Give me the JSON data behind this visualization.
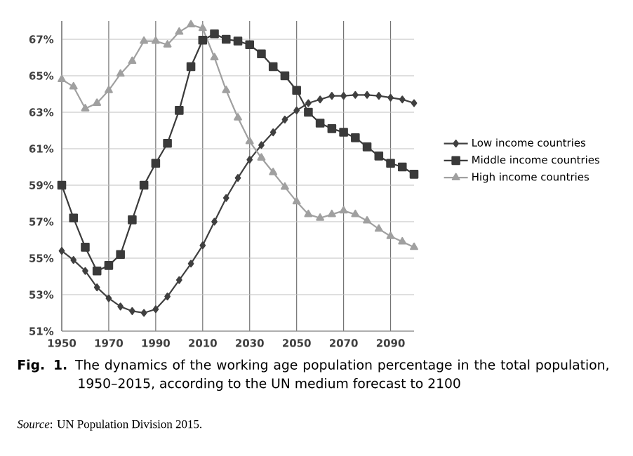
{
  "chart_data": {
    "type": "line",
    "title": "**Fig. 1.** The dynamics of the working age population percentage in the total population, 1950–2015, according to the UN medium forecast to 2100",
    "annotations": [
      "*Source*: UN Population Division 2015."
    ],
    "x": [
      1950,
      1955,
      1960,
      1965,
      1970,
      1975,
      1980,
      1985,
      1990,
      1995,
      2000,
      2005,
      2010,
      2015,
      2020,
      2025,
      2030,
      2035,
      2040,
      2045,
      2050,
      2055,
      2060,
      2065,
      2070,
      2075,
      2080,
      2085,
      2090,
      2095,
      2100
    ],
    "series": [
      {
        "name": "Low income countries",
        "color": "#404040",
        "marker": "diamond",
        "values": [
          55.4,
          54.9,
          54.3,
          53.4,
          52.8,
          52.35,
          52.1,
          52.0,
          52.2,
          52.9,
          53.8,
          54.7,
          55.7,
          57.0,
          58.3,
          59.4,
          60.4,
          61.2,
          61.9,
          62.6,
          63.1,
          63.5,
          63.7,
          63.9,
          63.9,
          63.95,
          63.95,
          63.9,
          63.8,
          63.7,
          63.5
        ]
      },
      {
        "name": "Middle income countries",
        "color": "#3a3a3a",
        "marker": "square",
        "values": [
          59.0,
          57.2,
          55.6,
          54.3,
          54.6,
          55.2,
          57.1,
          59.0,
          60.2,
          61.3,
          63.1,
          65.5,
          66.95,
          67.3,
          67.0,
          66.9,
          66.7,
          66.2,
          65.5,
          65.0,
          64.2,
          63.0,
          62.4,
          62.1,
          61.9,
          61.6,
          61.1,
          60.6,
          60.2,
          60.0,
          59.6
        ]
      },
      {
        "name": "High income countries",
        "color": "#a0a0a0",
        "marker": "triangle",
        "values": [
          64.8,
          64.4,
          63.2,
          63.5,
          64.2,
          65.1,
          65.8,
          66.9,
          66.9,
          66.7,
          67.4,
          67.8,
          67.6,
          66.0,
          64.2,
          62.7,
          61.4,
          60.5,
          59.7,
          58.9,
          58.1,
          57.4,
          57.2,
          57.4,
          57.6,
          57.4,
          57.05,
          56.6,
          56.2,
          55.9,
          55.6
        ]
      }
    ],
    "xlim": [
      1950,
      2100
    ],
    "ylim": [
      51,
      68
    ],
    "xticks": [
      1950,
      1970,
      1990,
      2010,
      2030,
      2050,
      2070,
      2090
    ],
    "yticks": [
      {
        "value": 51,
        "label": "51%"
      },
      {
        "value": 53,
        "label": "53%"
      },
      {
        "value": 55,
        "label": "55%"
      },
      {
        "value": 57,
        "label": "57%"
      },
      {
        "value": 59,
        "label": "59%"
      },
      {
        "value": 61,
        "label": "61%"
      },
      {
        "value": 63,
        "label": "63%"
      },
      {
        "value": 65,
        "label": "65%"
      },
      {
        "value": 67,
        "label": "67%"
      }
    ],
    "grid": true,
    "legend": "right",
    "line_style": "solid"
  }
}
